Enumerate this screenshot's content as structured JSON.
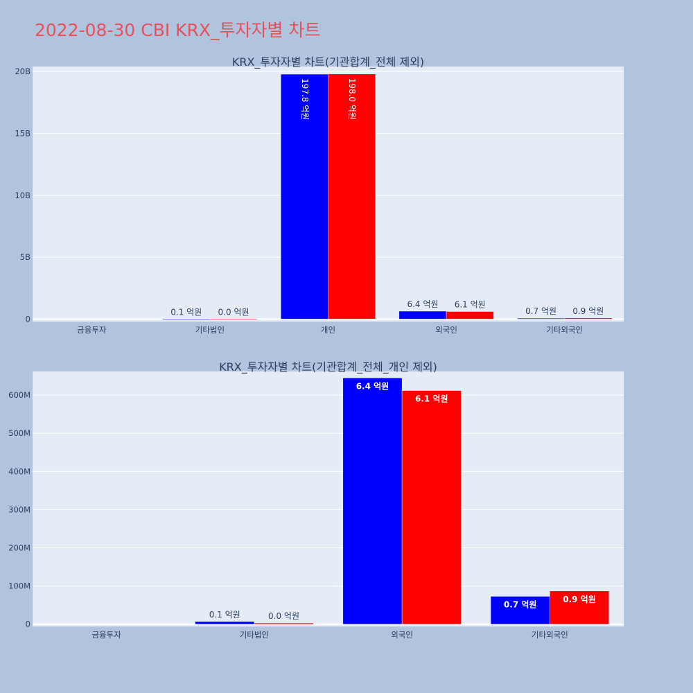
{
  "page": {
    "title": "2022-08-30 CBI KRX_투자자별 차트",
    "title_color": "#e8505b",
    "background": "#b0c4de",
    "plot_background": "#e5ecf6"
  },
  "chart_data": [
    {
      "type": "bar",
      "title": "KRX_투자자별 차트(기관합계_전체 제외)",
      "categories": [
        "금융투자",
        "기타법인",
        "개인",
        "외국인",
        "기타외국인"
      ],
      "series": [
        {
          "color": "#0000ff",
          "values": [
            0,
            8000000,
            19780000000,
            640000000,
            70000000
          ],
          "labels": [
            "",
            "0.1 억원",
            "197.8 억원",
            "6.4 억원",
            "0.7 억원"
          ]
        },
        {
          "color": "#ff0000",
          "values": [
            0,
            3000000,
            19800000000,
            610000000,
            90000000
          ],
          "labels": [
            "",
            "0.0 억원",
            "198.0 억원",
            "6.1 억원",
            "0.9 억원"
          ]
        }
      ],
      "yticks": [
        0,
        5000000000,
        10000000000,
        15000000000,
        20000000000
      ],
      "ytick_labels": [
        "0",
        "5B",
        "10B",
        "15B",
        "20B"
      ],
      "ylim": [
        -200000000,
        20400000000
      ],
      "grid": true,
      "label_style": "plain"
    },
    {
      "type": "bar",
      "title": "KRX_투자자별 차트(기관합계_전체_개인 제외)",
      "categories": [
        "금융투자",
        "기타법인",
        "외국인",
        "기타외국인"
      ],
      "series": [
        {
          "color": "#0000ff",
          "values": [
            0,
            7000000,
            645000000,
            73000000
          ],
          "labels": [
            "",
            "0.1 억원",
            "6.4 억원",
            "0.7 억원"
          ]
        },
        {
          "color": "#ff0000",
          "values": [
            0,
            3000000,
            612000000,
            87000000
          ],
          "labels": [
            "",
            "0.0 억원",
            "6.1 억원",
            "0.9 억원"
          ]
        }
      ],
      "yticks": [
        0,
        100000000,
        200000000,
        300000000,
        400000000,
        500000000,
        600000000
      ],
      "ytick_labels": [
        "0",
        "100M",
        "200M",
        "300M",
        "400M",
        "500M",
        "600M"
      ],
      "ylim": [
        -6000000,
        662000000
      ],
      "grid": true,
      "label_style": "bold"
    }
  ]
}
